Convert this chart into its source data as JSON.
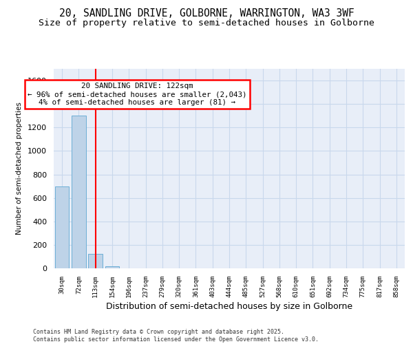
{
  "title": "20, SANDLING DRIVE, GOLBORNE, WARRINGTON, WA3 3WF",
  "subtitle": "Size of property relative to semi-detached houses in Golborne",
  "xlabel": "Distribution of semi-detached houses by size in Golborne",
  "ylabel": "Number of semi-detached properties",
  "categories": [
    "30sqm",
    "72sqm",
    "113sqm",
    "154sqm",
    "196sqm",
    "237sqm",
    "279sqm",
    "320sqm",
    "361sqm",
    "403sqm",
    "444sqm",
    "485sqm",
    "527sqm",
    "568sqm",
    "610sqm",
    "651sqm",
    "692sqm",
    "734sqm",
    "775sqm",
    "817sqm",
    "858sqm"
  ],
  "values": [
    700,
    1300,
    125,
    15,
    2,
    0,
    0,
    0,
    0,
    0,
    0,
    0,
    0,
    0,
    0,
    0,
    0,
    0,
    0,
    0,
    0
  ],
  "bar_color": "#bed3e8",
  "bar_edge_color": "#6baed6",
  "red_line_index": 2,
  "ylim": [
    0,
    1700
  ],
  "yticks": [
    0,
    200,
    400,
    600,
    800,
    1000,
    1200,
    1400,
    1600
  ],
  "annotation_text": "20 SANDLING DRIVE: 122sqm\n← 96% of semi-detached houses are smaller (2,043)\n4% of semi-detached houses are larger (81) →",
  "footer_text": "Contains HM Land Registry data © Crown copyright and database right 2025.\nContains public sector information licensed under the Open Government Licence v3.0.",
  "grid_color": "#c8d8ec",
  "background_color": "#e8eef8",
  "title_fontsize": 10.5,
  "subtitle_fontsize": 9.5
}
